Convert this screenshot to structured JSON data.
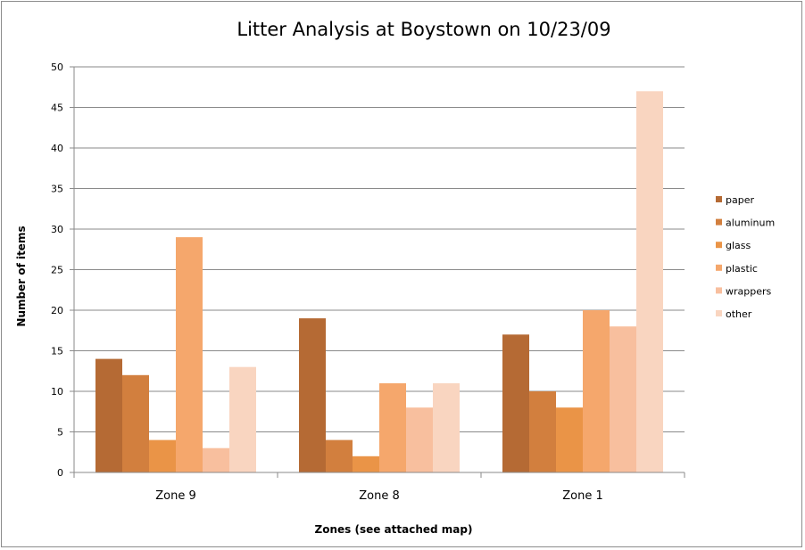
{
  "chart_data": {
    "type": "bar",
    "title": "Litter Analysis at Boystown on 10/23/09",
    "xlabel": "Zones (see attached map)",
    "ylabel": "Number of items",
    "ylim": [
      0,
      50
    ],
    "yticks": [
      0,
      5,
      10,
      15,
      20,
      25,
      30,
      35,
      40,
      45,
      50
    ],
    "grid": true,
    "legend_position": "right",
    "categories": [
      "Zone 9",
      "Zone 8",
      "Zone 1"
    ],
    "series": [
      {
        "name": "paper",
        "color": "#B56A34",
        "values": [
          14,
          19,
          17
        ]
      },
      {
        "name": "aluminum",
        "color": "#D27F3E",
        "values": [
          12,
          4,
          10
        ]
      },
      {
        "name": "glass",
        "color": "#EA9447",
        "values": [
          4,
          2,
          8
        ]
      },
      {
        "name": "plastic",
        "color": "#F5A76C",
        "values": [
          29,
          11,
          20
        ]
      },
      {
        "name": "wrappers",
        "color": "#F8BF9E",
        "values": [
          3,
          8,
          18
        ]
      },
      {
        "name": "other",
        "color": "#F9D5C0",
        "values": [
          13,
          11,
          47
        ]
      }
    ]
  }
}
